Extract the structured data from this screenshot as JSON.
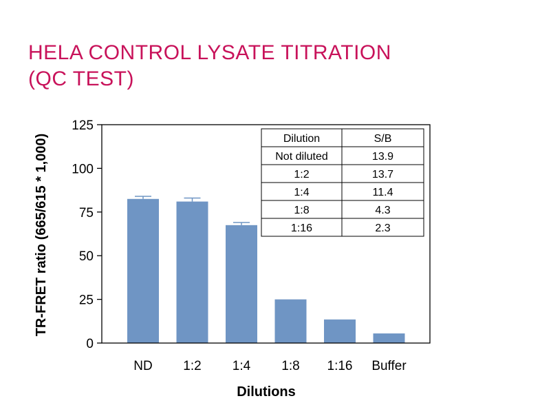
{
  "title": {
    "line1": "HELA CONTROL LYSATE TITRATION",
    "line2": "(QC TEST)"
  },
  "colors": {
    "title": "#c8125a",
    "bar": "#6f95c4",
    "axis": "#000000"
  },
  "chart_data": {
    "type": "bar",
    "categories": [
      "ND",
      "1:2",
      "1:4",
      "1:8",
      "1:16",
      "Buffer"
    ],
    "values": [
      82.5,
      81,
      67.5,
      25,
      13.5,
      5.5
    ],
    "error": [
      1.5,
      2,
      1.5,
      null,
      null,
      null
    ],
    "ylabel": "TR-FRET ratio (665/615 * 1,000)",
    "xlabel": "Dilutions",
    "ylim": [
      0,
      125
    ],
    "yticks": [
      0,
      25,
      50,
      75,
      100,
      125
    ],
    "legend": "none",
    "grid": false
  },
  "table": {
    "headers": [
      "Dilution",
      "S/B"
    ],
    "rows": [
      [
        "Not diluted",
        "13.9"
      ],
      [
        "1:2",
        "13.7"
      ],
      [
        "1:4",
        "11.4"
      ],
      [
        "1:8",
        "4.3"
      ],
      [
        "1:16",
        "2.3"
      ]
    ]
  }
}
